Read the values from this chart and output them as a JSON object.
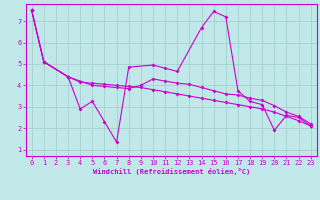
{
  "xlabel": "Windchill (Refroidissement éolien,°C)",
  "bg_color": "#c0e8e8",
  "grid_color": "#a0cccc",
  "line_color": "#cc00cc",
  "xlim": [
    -0.5,
    23.5
  ],
  "ylim": [
    0.7,
    7.8
  ],
  "xticks": [
    0,
    1,
    2,
    3,
    4,
    5,
    6,
    7,
    8,
    9,
    10,
    11,
    12,
    13,
    14,
    15,
    16,
    17,
    18,
    19,
    20,
    21,
    22,
    23
  ],
  "yticks": [
    1,
    2,
    3,
    4,
    5,
    6,
    7
  ],
  "line1_x": [
    0,
    1,
    3,
    4,
    5,
    6,
    7,
    8,
    10,
    11,
    12,
    14,
    15,
    16,
    17,
    18,
    19,
    20,
    21,
    22,
    23
  ],
  "line1_y": [
    7.5,
    5.1,
    4.4,
    2.9,
    3.25,
    2.3,
    1.35,
    4.85,
    4.95,
    4.8,
    4.65,
    6.7,
    7.45,
    7.2,
    3.75,
    3.25,
    3.1,
    1.9,
    2.6,
    2.5,
    2.1
  ],
  "line2_x": [
    0,
    1,
    3,
    5,
    6,
    7,
    8,
    9,
    10,
    11,
    12,
    13,
    14,
    15,
    16,
    17,
    18,
    19,
    20,
    21,
    22,
    23
  ],
  "line2_y": [
    7.5,
    5.1,
    4.4,
    4.0,
    3.95,
    3.9,
    3.85,
    4.0,
    4.3,
    4.2,
    4.1,
    4.05,
    3.9,
    3.75,
    3.6,
    3.55,
    3.4,
    3.3,
    3.05,
    2.75,
    2.55,
    2.2
  ],
  "line3_x": [
    0,
    1,
    3,
    4,
    5,
    6,
    7,
    8,
    9,
    10,
    11,
    12,
    13,
    14,
    15,
    16,
    17,
    18,
    19,
    20,
    21,
    22,
    23
  ],
  "line3_y": [
    7.5,
    5.1,
    4.4,
    4.15,
    4.1,
    4.05,
    4.0,
    3.95,
    3.9,
    3.8,
    3.7,
    3.6,
    3.5,
    3.4,
    3.3,
    3.2,
    3.1,
    3.0,
    2.9,
    2.75,
    2.55,
    2.35,
    2.1
  ]
}
